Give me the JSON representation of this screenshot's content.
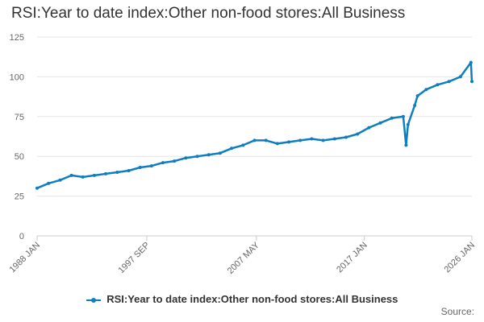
{
  "title": "RSI:Year to date index:Other non-food stores:All Business",
  "source_label": "Source:",
  "colors": {
    "series": "#0f7ec1",
    "grid": "#e6e6e6",
    "axis": "#cccccc"
  },
  "chart_data": {
    "type": "line",
    "title": "RSI:Year to date index:Other non-food stores:All Business",
    "xlabel": "",
    "ylabel": "",
    "ylim": [
      0,
      125
    ],
    "yticks": [
      0,
      25,
      50,
      75,
      100,
      125
    ],
    "xlim": [
      "1988-01",
      "2026-01"
    ],
    "xticks": [
      "1988 JAN",
      "1997 SEP",
      "2007 MAY",
      "2017 JAN",
      "2026 JAN"
    ],
    "grid": true,
    "legend_position": "bottom",
    "series": [
      {
        "name": "RSI:Year to date index:Other non-food stores:All Business",
        "x": [
          "1988-01",
          "1989-01",
          "1990-01",
          "1991-01",
          "1992-01",
          "1993-01",
          "1994-01",
          "1995-01",
          "1996-01",
          "1997-01",
          "1998-01",
          "1999-01",
          "2000-01",
          "2001-01",
          "2002-01",
          "2003-01",
          "2004-01",
          "2005-01",
          "2006-01",
          "2007-01",
          "2008-01",
          "2009-01",
          "2010-01",
          "2011-01",
          "2012-01",
          "2013-01",
          "2014-01",
          "2015-01",
          "2016-01",
          "2017-01",
          "2018-01",
          "2019-01",
          "2020-01",
          "2020-04",
          "2020-06",
          "2021-01",
          "2021-04",
          "2022-01",
          "2023-01",
          "2024-01",
          "2025-01",
          "2025-12",
          "2026-01"
        ],
        "values": [
          30,
          33,
          35,
          38,
          37,
          38,
          39,
          40,
          41,
          43,
          44,
          46,
          47,
          49,
          50,
          51,
          52,
          55,
          57,
          60,
          60,
          58,
          59,
          60,
          61,
          60,
          61,
          62,
          64,
          68,
          71,
          74,
          75,
          57,
          70,
          82,
          88,
          92,
          95,
          97,
          100,
          109,
          97
        ]
      }
    ]
  }
}
